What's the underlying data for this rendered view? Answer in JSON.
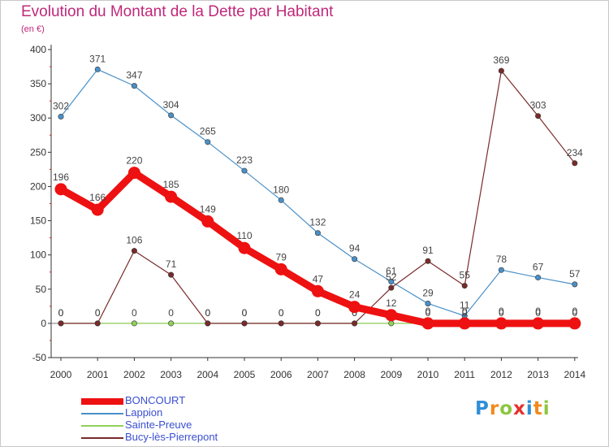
{
  "chart_data": {
    "type": "line",
    "title": "Evolution du Montant de la Dette par Habitant",
    "subtitle": "(en €)",
    "x": [
      "2000",
      "2001",
      "2002",
      "2003",
      "2004",
      "2005",
      "2006",
      "2007",
      "2008",
      "2009",
      "2010",
      "2011",
      "2012",
      "2013",
      "2014"
    ],
    "ylim": [
      -50,
      400
    ],
    "yticks": [
      -50,
      0,
      50,
      100,
      150,
      200,
      250,
      300,
      350,
      400
    ],
    "grid": false,
    "legend_position": "bottom-left",
    "series": [
      {
        "name": "Lappion",
        "color": "#4a90c8",
        "values": [
          302,
          371,
          347,
          304,
          265,
          223,
          180,
          132,
          94,
          61,
          29,
          11,
          78,
          67,
          57
        ]
      },
      {
        "name": "Sainte-Preuve",
        "color": "#8fd15a",
        "values": [
          0,
          0,
          0,
          0,
          0,
          0,
          0,
          0,
          0,
          0,
          0,
          0,
          0,
          0,
          0
        ]
      },
      {
        "name": "Bucy-lès-Pierrepont",
        "color": "#7a2a2a",
        "values": [
          0,
          0,
          106,
          71,
          0,
          0,
          0,
          0,
          0,
          52,
          91,
          55,
          369,
          303,
          234
        ]
      },
      {
        "name": "BONCOURT",
        "color": "#ee1111",
        "values": [
          196,
          166,
          220,
          185,
          149,
          110,
          79,
          47,
          24,
          12,
          0,
          0,
          0,
          0,
          0
        ]
      }
    ]
  },
  "logo": {
    "text": "Proxiti"
  }
}
